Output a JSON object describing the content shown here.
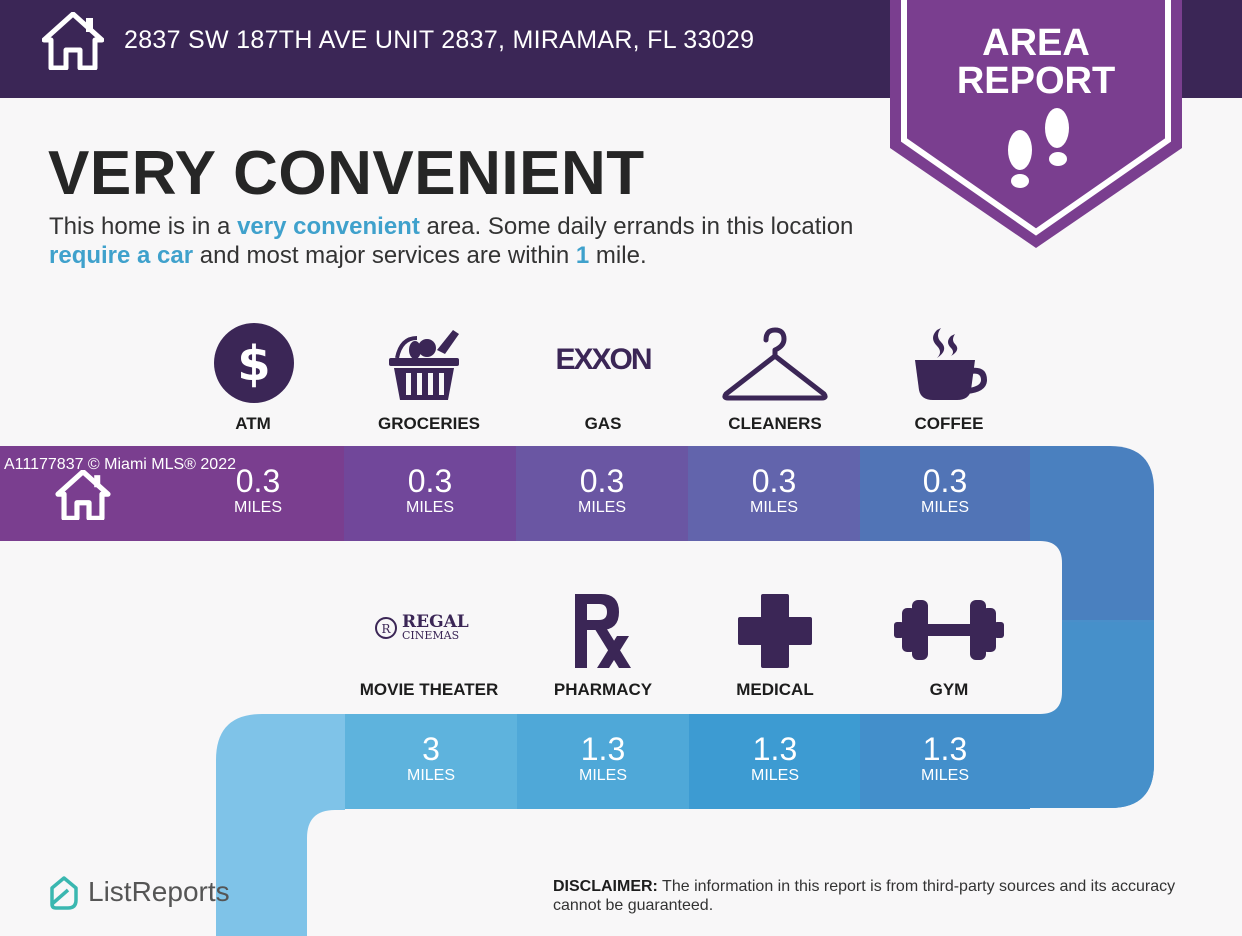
{
  "header": {
    "address": "2837 SW 187TH AVE UNIT 2837, MIRAMAR, FL 33029",
    "badge_line1": "AREA",
    "badge_line2": "REPORT"
  },
  "headline": "VERY CONVENIENT",
  "description": {
    "p1": "This home is in a ",
    "h1": "very convenient",
    "p2": " area. Some daily errands in this location ",
    "h2": "require a car",
    "p3": " and most major services are within ",
    "h3": "1",
    "p4": " mile."
  },
  "row1": [
    {
      "label": "ATM",
      "icon": "dollar-icon",
      "distance": "0.3",
      "unit": "MILES",
      "color": "#7a3e8f"
    },
    {
      "label": "GROCERIES",
      "icon": "grocery-basket-icon",
      "distance": "0.3",
      "unit": "MILES",
      "color": "#71479a"
    },
    {
      "label": "GAS",
      "icon": "exxon-logo",
      "icon_text": "EXXON",
      "distance": "0.3",
      "unit": "MILES",
      "color": "#6a56a3"
    },
    {
      "label": "CLEANERS",
      "icon": "hanger-icon",
      "distance": "0.3",
      "unit": "MILES",
      "color": "#6264ac"
    },
    {
      "label": "COFFEE",
      "icon": "coffee-cup-icon",
      "distance": "0.3",
      "unit": "MILES",
      "color": "#5174b6"
    }
  ],
  "row2": [
    {
      "label": "MOVIE THEATER",
      "icon": "regal-cinemas-logo",
      "icon_text_1": "REGAL",
      "icon_text_2": "CINEMAS",
      "distance": "3",
      "unit": "MILES",
      "color": "#5eb3dd"
    },
    {
      "label": "PHARMACY",
      "icon": "rx-icon",
      "distance": "1.3",
      "unit": "MILES",
      "color": "#4fa8d8"
    },
    {
      "label": "MEDICAL",
      "icon": "medical-cross-icon",
      "distance": "1.3",
      "unit": "MILES",
      "color": "#3d9bd2"
    },
    {
      "label": "GYM",
      "icon": "dumbbell-icon",
      "distance": "1.3",
      "unit": "MILES",
      "color": "#438fcb"
    }
  ],
  "watermark": "A11177837 © Miami MLS® 2022",
  "footer": {
    "logo_text": "ListReports",
    "disclaimer_label": "DISCLAIMER:",
    "disclaimer_text": " The information in this report is from third-party sources and its accuracy cannot be guaranteed."
  },
  "colors": {
    "header_bg": "#3b2656",
    "badge_purple": "#7a3e8f",
    "highlight_blue": "#3fa1cc",
    "icon_dark": "#3b2656"
  }
}
